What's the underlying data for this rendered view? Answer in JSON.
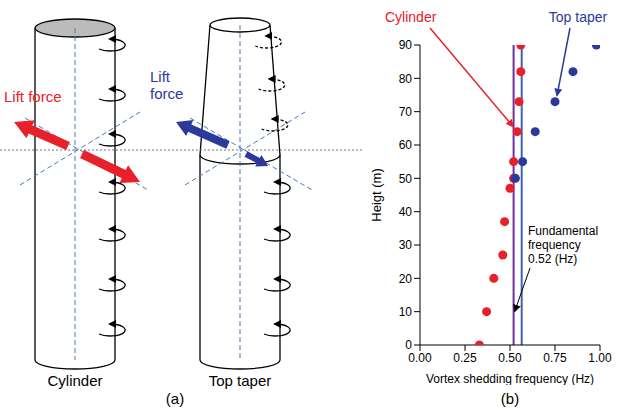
{
  "panel_labels": {
    "a": "(a)",
    "b": "(b)"
  },
  "diagram": {
    "items": [
      {
        "name": "Cylinder",
        "lift_label": "Lift force",
        "color": "#e8202a"
      },
      {
        "name": "Top taper",
        "lift_label": "Lift force",
        "color": "#2b3a9a"
      }
    ]
  },
  "chart_data": {
    "type": "scatter",
    "x_label": "Vortex shedding frequency (Hz)",
    "y_label": "Heigt (m)",
    "xlim": [
      0,
      1
    ],
    "xticks": [
      {
        "value": 0,
        "label": "0.00"
      },
      {
        "value": 0.25,
        "label": "0.25"
      },
      {
        "value": 0.5,
        "label": "0.50"
      },
      {
        "value": 0.75,
        "label": "0.75"
      },
      {
        "value": 1,
        "label": "1.00"
      }
    ],
    "ylim": [
      0,
      90
    ],
    "yticks": [
      0,
      10,
      20,
      30,
      40,
      50,
      60,
      70,
      80,
      90
    ],
    "grid": false,
    "series": [
      {
        "name": "Cylinder",
        "color": "#e8202a",
        "marker": "circle",
        "x": [
          0.33,
          0.37,
          0.41,
          0.46,
          0.47,
          0.5,
          0.52,
          0.52,
          0.54,
          0.55,
          0.56,
          0.56
        ],
        "values": [
          0,
          10,
          20,
          27,
          37,
          47,
          50,
          55,
          64,
          73,
          82,
          90
        ]
      },
      {
        "name": "Top taper",
        "color": "#2b3a9a",
        "marker": "circle",
        "x": [
          0.53,
          0.57,
          0.64,
          0.75,
          0.85,
          0.98
        ],
        "values": [
          50,
          55,
          64,
          73,
          82,
          90
        ]
      }
    ],
    "reference_lines": [
      {
        "x": 0.52,
        "color": "#7030a0"
      },
      {
        "x": 0.565,
        "color": "#4060c0"
      }
    ],
    "annotation": {
      "lines": [
        "Fundamental",
        "frequency",
        "0.52 (Hz)"
      ]
    }
  }
}
